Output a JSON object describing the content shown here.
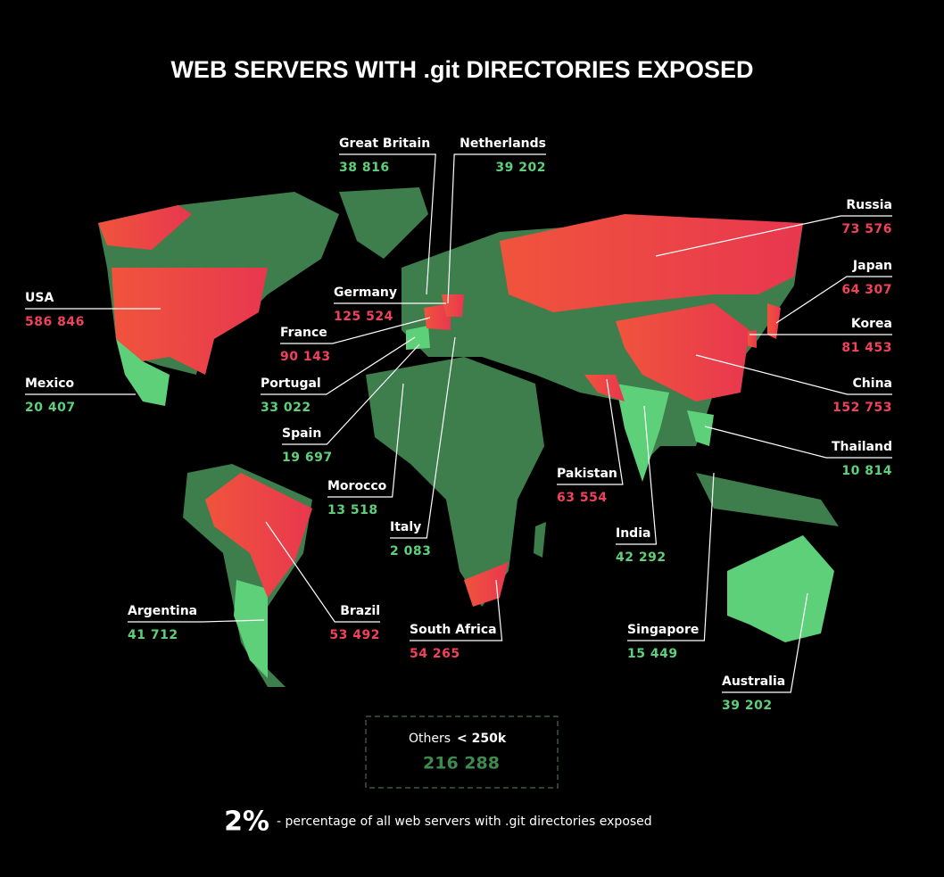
{
  "title": "WEB SERVERS WITH .git DIRECTORIES EXPOSED",
  "countries": [
    {
      "name": "Great Britain",
      "value": "38 816"
    },
    {
      "name": "Netherlands",
      "value": "39 202"
    },
    {
      "name": "Russia",
      "value": "73 576"
    },
    {
      "name": "Japan",
      "value": "64 307"
    },
    {
      "name": "Korea",
      "value": "81 453"
    },
    {
      "name": "China",
      "value": "152 753"
    },
    {
      "name": "Thailand",
      "value": "10 814"
    },
    {
      "name": "USA",
      "value": "586 846"
    },
    {
      "name": "Mexico",
      "value": "20 407"
    },
    {
      "name": "Germany",
      "value": "125 524"
    },
    {
      "name": "France",
      "value": "90 143"
    },
    {
      "name": "Portugal",
      "value": "33 022"
    },
    {
      "name": "Spain",
      "value": "19 697"
    },
    {
      "name": "Morocco",
      "value": "13 518"
    },
    {
      "name": "Italy",
      "value": "2 083"
    },
    {
      "name": "Pakistan",
      "value": "63 554"
    },
    {
      "name": "India",
      "value": "42 292"
    },
    {
      "name": "Singapore",
      "value": "15 449"
    },
    {
      "name": "Argentina",
      "value": "41 712"
    },
    {
      "name": "Brazil",
      "value": "53 492"
    },
    {
      "name": "South Africa",
      "value": "54 265"
    },
    {
      "name": "Australia",
      "value": "39 202"
    }
  ],
  "others": {
    "label": "Others",
    "threshold": "< 250k",
    "value": "216 288"
  },
  "footer": {
    "percent": "2%",
    "text": "- percentage of all web servers with .git directories exposed"
  }
}
